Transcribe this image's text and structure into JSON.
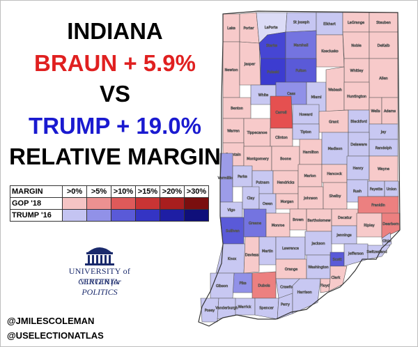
{
  "title": {
    "state": "INDIANA",
    "line2": "BRAUN + 5.9%",
    "vs": "VS",
    "line4": "TRUMP + 19.0%",
    "line5": "RELATIVE MARGIN"
  },
  "legend": {
    "header": "MARGIN",
    "bins": [
      ">0%",
      ">5%",
      ">10%",
      ">15%",
      ">20%",
      ">30%"
    ],
    "rows": [
      {
        "label": "GOP '18",
        "colors": [
          "#f5c4c4",
          "#ec9191",
          "#de5a5a",
          "#c83434",
          "#a81e1e",
          "#7a0f0f"
        ]
      },
      {
        "label": "TRUMP '16",
        "colors": [
          "#c4c4f2",
          "#9191e8",
          "#5a5ad8",
          "#3434c4",
          "#1e1ea4",
          "#0f0f7a"
        ]
      }
    ]
  },
  "logo": {
    "university": "UNIVERSITY of VIRGINIA",
    "center": "CENTER for POLITICS"
  },
  "credits": [
    "@JMILESCOLEMAN",
    "@USELECTIONATLAS"
  ],
  "colors": {
    "outline": "#555555",
    "background": "#ffffff"
  },
  "counties": [
    {
      "name": "Lake",
      "fill": "#f7caca"
    },
    {
      "name": "Porter",
      "fill": "#f7caca"
    },
    {
      "name": "LaPorte",
      "fill": "#dcdcf6"
    },
    {
      "name": "St Joseph",
      "fill": "#c6c6f2"
    },
    {
      "name": "Elkhart",
      "fill": "#c8c8f2"
    },
    {
      "name": "LaGrange",
      "fill": "#f7caca"
    },
    {
      "name": "Steuben",
      "fill": "#f7caca"
    },
    {
      "name": "Newton",
      "fill": "#f7caca"
    },
    {
      "name": "Jasper",
      "fill": "#f7caca"
    },
    {
      "name": "Starke",
      "fill": "#4646d4"
    },
    {
      "name": "Marshall",
      "fill": "#7474e0"
    },
    {
      "name": "Kosciusko",
      "fill": "#f7caca"
    },
    {
      "name": "Noble",
      "fill": "#f7caca"
    },
    {
      "name": "DeKalb",
      "fill": "#f7caca"
    },
    {
      "name": "Pulaski",
      "fill": "#3c3cd0"
    },
    {
      "name": "Fulton",
      "fill": "#5a5ad8"
    },
    {
      "name": "Whitley",
      "fill": "#f7caca"
    },
    {
      "name": "Allen",
      "fill": "#f7caca"
    },
    {
      "name": "Benton",
      "fill": "#f7caca"
    },
    {
      "name": "White",
      "fill": "#c8c8f2"
    },
    {
      "name": "Cass",
      "fill": "#9191e8"
    },
    {
      "name": "Miami",
      "fill": "#c8c8f2"
    },
    {
      "name": "Wabash",
      "fill": "#f7caca"
    },
    {
      "name": "Huntington",
      "fill": "#f7caca"
    },
    {
      "name": "Wells",
      "fill": "#f7caca"
    },
    {
      "name": "Adams",
      "fill": "#f7caca"
    },
    {
      "name": "Warren",
      "fill": "#f7caca"
    },
    {
      "name": "Carroll",
      "fill": "#e55050"
    },
    {
      "name": "Howard",
      "fill": "#c8c8f2"
    },
    {
      "name": "Grant",
      "fill": "#f7caca"
    },
    {
      "name": "Blackford",
      "fill": "#c8c8f2"
    },
    {
      "name": "Jay",
      "fill": "#c8c8f2"
    },
    {
      "name": "Tippecanoe",
      "fill": "#f7caca"
    },
    {
      "name": "Clinton",
      "fill": "#f7caca"
    },
    {
      "name": "Tipton",
      "fill": "#c8c8f2"
    },
    {
      "name": "Fountain",
      "fill": "#f7caca"
    },
    {
      "name": "Montgomery",
      "fill": "#f7caca"
    },
    {
      "name": "Boone",
      "fill": "#f7caca"
    },
    {
      "name": "Hamilton",
      "fill": "#f7caca"
    },
    {
      "name": "Madison",
      "fill": "#c8c8f2"
    },
    {
      "name": "Delaware",
      "fill": "#c8c8f2"
    },
    {
      "name": "Randolph",
      "fill": "#c8c8f2"
    },
    {
      "name": "Vermillion",
      "fill": "#9c9ce8"
    },
    {
      "name": "Parke",
      "fill": "#c8c8f2"
    },
    {
      "name": "Putnam",
      "fill": "#c8c8f2"
    },
    {
      "name": "Hendricks",
      "fill": "#f7caca"
    },
    {
      "name": "Marion",
      "fill": "#f7caca"
    },
    {
      "name": "Hancock",
      "fill": "#f7caca"
    },
    {
      "name": "Henry",
      "fill": "#c8c8f2"
    },
    {
      "name": "Wayne",
      "fill": "#f7caca"
    },
    {
      "name": "Vigo",
      "fill": "#c8c8f2"
    },
    {
      "name": "Clay",
      "fill": "#c8c8f2"
    },
    {
      "name": "Owen",
      "fill": "#c8c8f2"
    },
    {
      "name": "Morgan",
      "fill": "#f7caca"
    },
    {
      "name": "Johnson",
      "fill": "#f7caca"
    },
    {
      "name": "Shelby",
      "fill": "#f7caca"
    },
    {
      "name": "Rush",
      "fill": "#c8c8f2"
    },
    {
      "name": "Fayette",
      "fill": "#c8c8f2"
    },
    {
      "name": "Union",
      "fill": "#c8c8f2"
    },
    {
      "name": "Sullivan",
      "fill": "#5a5ad8"
    },
    {
      "name": "Greene",
      "fill": "#7474e0"
    },
    {
      "name": "Monroe",
      "fill": "#f7caca"
    },
    {
      "name": "Brown",
      "fill": "#f7caca"
    },
    {
      "name": "Bartholomew",
      "fill": "#f7caca"
    },
    {
      "name": "Decatur",
      "fill": "#f7caca"
    },
    {
      "name": "Franklin",
      "fill": "#ec8080"
    },
    {
      "name": "Knox",
      "fill": "#c8c8f2"
    },
    {
      "name": "Daviess",
      "fill": "#f7caca"
    },
    {
      "name": "Martin",
      "fill": "#c8c8f2"
    },
    {
      "name": "Lawrence",
      "fill": "#c8c8f2"
    },
    {
      "name": "Jackson",
      "fill": "#c8c8f2"
    },
    {
      "name": "Jennings",
      "fill": "#c8c8f2"
    },
    {
      "name": "Ripley",
      "fill": "#f7caca"
    },
    {
      "name": "Dearborn",
      "fill": "#ec8080"
    },
    {
      "name": "Ohio",
      "fill": "#c8c8f2"
    },
    {
      "name": "Pike",
      "fill": "#9191e8"
    },
    {
      "name": "Dubois",
      "fill": "#ec8080"
    },
    {
      "name": "Orange",
      "fill": "#f7caca"
    },
    {
      "name": "Washington",
      "fill": "#c8c8f2"
    },
    {
      "name": "Scott",
      "fill": "#5a5ad8"
    },
    {
      "name": "Jefferson",
      "fill": "#c8c8f2"
    },
    {
      "name": "Switzerland",
      "fill": "#c8c8f2"
    },
    {
      "name": "Gibson",
      "fill": "#c8c8f2"
    },
    {
      "name": "Warrick",
      "fill": "#c8c8f2"
    },
    {
      "name": "Spencer",
      "fill": "#c8c8f2"
    },
    {
      "name": "Perry",
      "fill": "#c8c8f2"
    },
    {
      "name": "Crawford",
      "fill": "#c8c8f2"
    },
    {
      "name": "Harrison",
      "fill": "#c8c8f2"
    },
    {
      "name": "Floyd",
      "fill": "#f7caca"
    },
    {
      "name": "Clark",
      "fill": "#f7caca"
    },
    {
      "name": "Posey",
      "fill": "#c8c8f2"
    },
    {
      "name": "Vanderburgh",
      "fill": "#c8c8f2"
    }
  ]
}
